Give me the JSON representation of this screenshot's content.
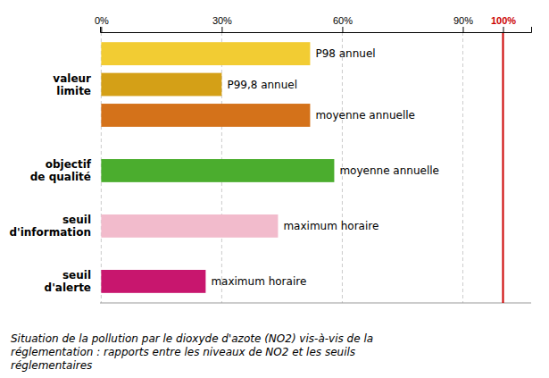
{
  "chart_data": {
    "type": "bar",
    "orientation": "horizontal",
    "categories": [
      "P98 annuel",
      "P99,8 annuel",
      "moyenne annuelle",
      "moyenne annuelle",
      "maximum horaire",
      "maximum horaire"
    ],
    "groups": [
      "valeur\nlimite",
      "valeur\nlimite",
      "valeur\nlimite",
      "objectif\nde qualité",
      "seuil\nd'information",
      "seuil\nd'alerte"
    ],
    "values": [
      52,
      30,
      52,
      58,
      44,
      26
    ],
    "colors": [
      "#F2CC33",
      "#D4A017",
      "#D4721A",
      "#4BAD2E",
      "#F2BBCC",
      "#C8166E"
    ],
    "xlim": [
      -0.3,
      107
    ],
    "xticks": [
      {
        "value": 0,
        "label": "0%"
      },
      {
        "value": 30,
        "label": "30%"
      },
      {
        "value": 60,
        "label": "60%"
      },
      {
        "value": 90,
        "label": "90%"
      },
      {
        "value": 100,
        "label": "100%"
      }
    ],
    "grid": true,
    "annotations": [
      {
        "type": "line",
        "value": 100,
        "color": "#CC0000"
      }
    ],
    "caption": "Situation de la pollution par le dioxyde d'azote (NO2) vis-à-vis de la\nréglementation : rapports entre les niveaux de NO2 et les seuils\nréglementaires"
  }
}
